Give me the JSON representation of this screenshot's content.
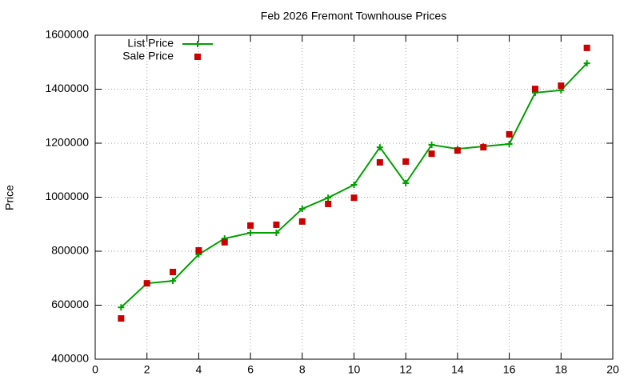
{
  "chart_data": {
    "type": "line",
    "title": "Feb 2026 Fremont Townhouse Prices",
    "y_label": "Price",
    "x": [
      1,
      2,
      3,
      4,
      5,
      6,
      7,
      8,
      9,
      10,
      11,
      12,
      13,
      14,
      15,
      16,
      17,
      18,
      19
    ],
    "series": [
      {
        "name": "List Price",
        "color": "#00a000",
        "line": true,
        "marker": "plus",
        "values": [
          592000,
          681000,
          690000,
          788000,
          847000,
          868000,
          868000,
          957000,
          998000,
          1046000,
          1185000,
          1052000,
          1194000,
          1179000,
          1188000,
          1197000,
          1387000,
          1396000,
          1496000
        ]
      },
      {
        "name": "Sale Price",
        "color": "#cc0000",
        "line": false,
        "marker": "square",
        "values": [
          551000,
          681000,
          723000,
          803000,
          833000,
          895000,
          898000,
          910000,
          975000,
          998000,
          1129000,
          1132000,
          1161000,
          1173000,
          1185000,
          1233000,
          1401000,
          1413000,
          1553000
        ]
      }
    ],
    "xlim": [
      0,
      20
    ],
    "xticks": [
      0,
      2,
      4,
      6,
      8,
      10,
      12,
      14,
      16,
      18,
      20
    ],
    "ylim": [
      400000,
      1600000
    ],
    "yticks": [
      400000,
      600000,
      800000,
      1000000,
      1200000,
      1400000,
      1600000
    ],
    "grid": true,
    "legend": "top-left"
  }
}
